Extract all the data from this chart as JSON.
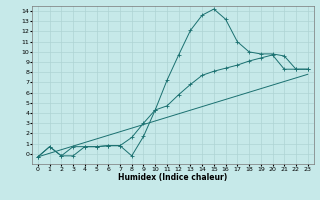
{
  "title": "",
  "xlabel": "Humidex (Indice chaleur)",
  "ylabel": "",
  "bg_color": "#c6e9e9",
  "grid_color": "#afd4d4",
  "line_color": "#1a7070",
  "xlim": [
    -0.5,
    23.5
  ],
  "ylim": [
    -1.0,
    14.5
  ],
  "xticks": [
    0,
    1,
    2,
    3,
    4,
    5,
    6,
    7,
    8,
    9,
    10,
    11,
    12,
    13,
    14,
    15,
    16,
    17,
    18,
    19,
    20,
    21,
    22,
    23
  ],
  "yticks": [
    0,
    1,
    2,
    3,
    4,
    5,
    6,
    7,
    8,
    9,
    10,
    11,
    12,
    13,
    14
  ],
  "line1_x": [
    0,
    1,
    2,
    3,
    4,
    5,
    6,
    7,
    8,
    9,
    10,
    11,
    12,
    13,
    14,
    15,
    16,
    17,
    18,
    19,
    20,
    21,
    22,
    23
  ],
  "line1_y": [
    -0.3,
    0.7,
    -0.2,
    -0.2,
    0.7,
    0.7,
    0.8,
    0.8,
    -0.2,
    1.7,
    4.3,
    7.2,
    9.7,
    12.1,
    13.6,
    14.2,
    13.2,
    11.0,
    10.0,
    9.8,
    9.8,
    9.6,
    8.3,
    8.3
  ],
  "line2_x": [
    0,
    1,
    2,
    3,
    4,
    5,
    6,
    7,
    8,
    9,
    10,
    11,
    12,
    13,
    14,
    15,
    16,
    17,
    18,
    19,
    20,
    21,
    22,
    23
  ],
  "line2_y": [
    -0.3,
    0.7,
    -0.2,
    0.7,
    0.7,
    0.7,
    0.8,
    0.8,
    1.6,
    3.0,
    4.3,
    4.7,
    5.8,
    6.8,
    7.7,
    8.1,
    8.4,
    8.7,
    9.1,
    9.4,
    9.7,
    8.3,
    8.3,
    8.3
  ],
  "line3_x": [
    0,
    23
  ],
  "line3_y": [
    -0.3,
    7.8
  ]
}
